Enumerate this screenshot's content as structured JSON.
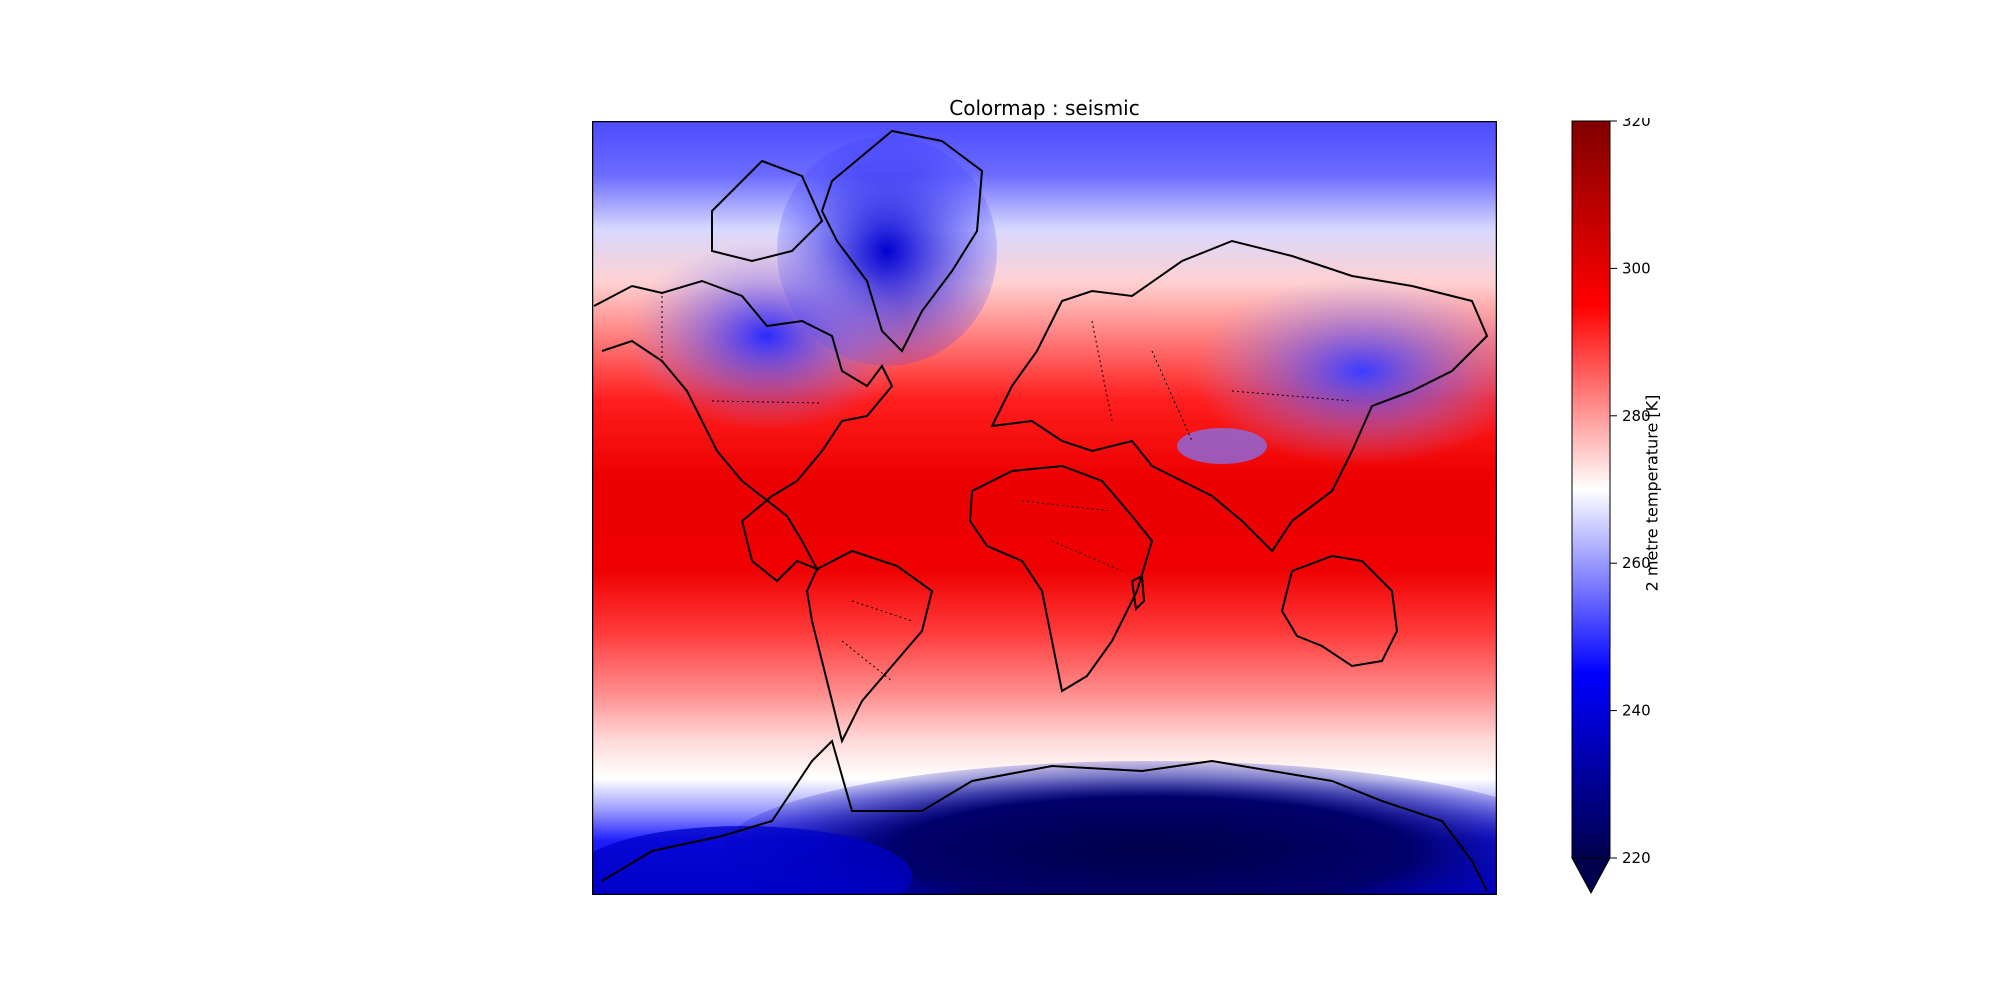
{
  "title": "Colormap : seismic",
  "map": {
    "projection": "Mercator",
    "variable": "2 metre temperature",
    "coastlines": true,
    "borders": "dotted"
  },
  "colorbar": {
    "label": "2 metre temperature [K]",
    "colormap": "seismic",
    "min": 220,
    "max": 320,
    "extend": "min",
    "ticks": [
      "220",
      "240",
      "260",
      "280",
      "300",
      "320"
    ],
    "colors": [
      "#00004c",
      "#0000ff",
      "#ffffff",
      "#ff0000",
      "#800000"
    ]
  }
}
